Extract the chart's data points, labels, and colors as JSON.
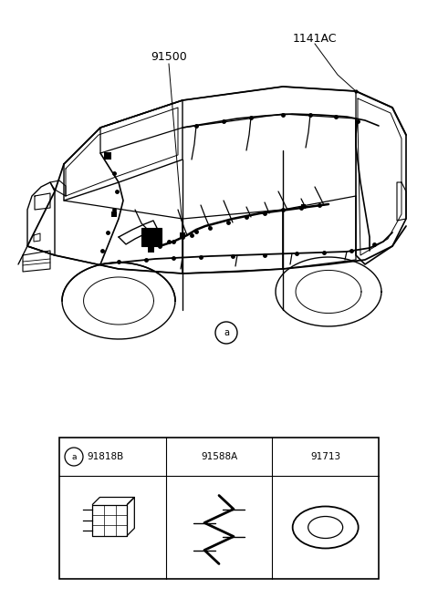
{
  "bg_color": "#ffffff",
  "line_color": "#000000",
  "label_91500": "91500",
  "label_1141AC": "1141AC",
  "label_a_text": "a",
  "part_col1_label": "91818B",
  "part_col2_label": "91588A",
  "part_col3_label": "91713"
}
